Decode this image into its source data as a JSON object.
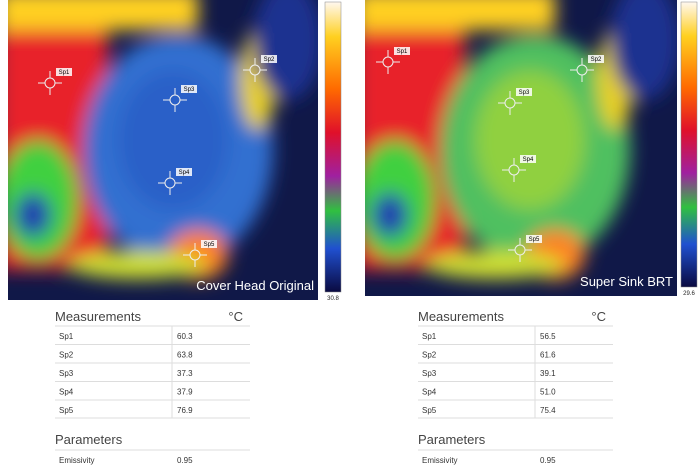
{
  "panels": [
    {
      "caption": "Cover Head Original",
      "scale_min": "30.8",
      "spots": [
        "Sp1",
        "Sp2",
        "Sp3",
        "Sp4",
        "Sp5"
      ],
      "table": {
        "heading": "Measurements",
        "unit": "°C",
        "rows": [
          [
            "Sp1",
            "60.3"
          ],
          [
            "Sp2",
            "63.8"
          ],
          [
            "Sp3",
            "37.3"
          ],
          [
            "Sp4",
            "37.9"
          ],
          [
            "Sp5",
            "76.9"
          ]
        ],
        "parameters_heading": "Parameters",
        "parameters": [
          [
            "Emissivity",
            "0.95"
          ]
        ]
      }
    },
    {
      "caption": "Super Sink BRT",
      "scale_min": "29.6",
      "spots": [
        "Sp1",
        "Sp2",
        "Sp3",
        "Sp4",
        "Sp5"
      ],
      "table": {
        "heading": "Measurements",
        "unit": "°C",
        "rows": [
          [
            "Sp1",
            "56.5"
          ],
          [
            "Sp2",
            "61.6"
          ],
          [
            "Sp3",
            "39.1"
          ],
          [
            "Sp4",
            "51.0"
          ],
          [
            "Sp5",
            "75.4"
          ]
        ],
        "parameters_heading": "Parameters",
        "parameters": [
          [
            "Emissivity",
            "0.95"
          ]
        ]
      }
    }
  ]
}
